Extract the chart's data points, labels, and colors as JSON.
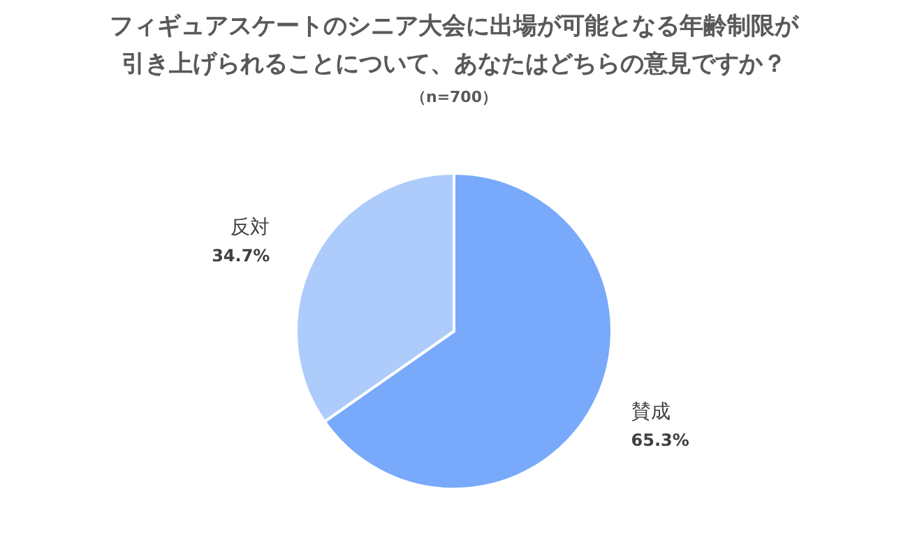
{
  "chart_data": {
    "type": "pie",
    "title": "フィギュアスケートのシニア大会に出場が可能となる年齢制限が引き上げられることについて、あなたはどちらの意見ですか？",
    "subtitle": "（n=700）",
    "categories": [
      "賛成",
      "反対"
    ],
    "values": [
      65.3,
      34.7
    ],
    "colors": [
      "#78a9fa",
      "#adcbfb"
    ],
    "value_labels": [
      "65.3%",
      "34.7%"
    ]
  }
}
